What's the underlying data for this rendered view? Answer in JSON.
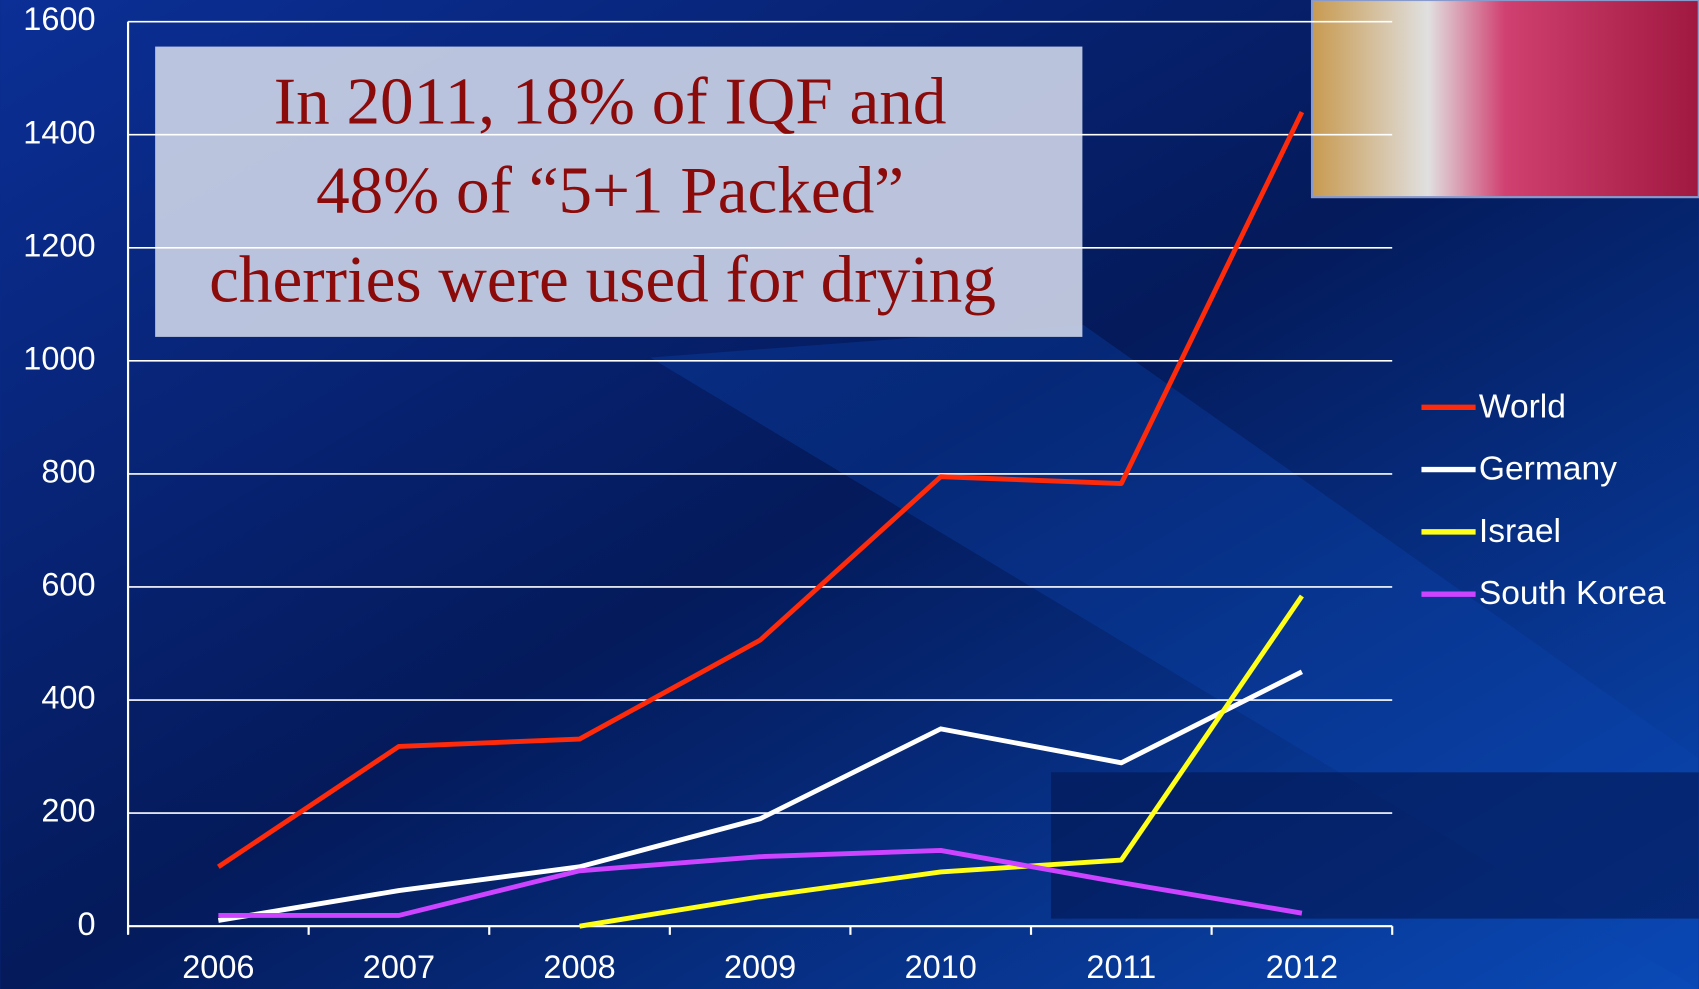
{
  "chart_data": {
    "type": "line",
    "annotation": [
      "In 2011, 18% of IQF and",
      "48% of “5+1 Packed”",
      "cherries were used for drying"
    ],
    "categories": [
      "2006",
      "2007",
      "2008",
      "2009",
      "2010",
      "2011",
      "2012"
    ],
    "series": [
      {
        "name": "World",
        "color": "#ff2a0a",
        "values": [
          105,
          318,
          331,
          506,
          795,
          783,
          1440
        ]
      },
      {
        "name": "Germany",
        "color": "#ffffff",
        "values": [
          10,
          63,
          105,
          190,
          349,
          289,
          450
        ]
      },
      {
        "name": "Israel",
        "color": "#ffff1a",
        "values": [
          null,
          null,
          0,
          52,
          96,
          117,
          584
        ]
      },
      {
        "name": "South Korea",
        "color": "#cc44ff",
        "values": [
          19,
          19,
          98,
          123,
          134,
          77,
          23
        ]
      }
    ],
    "ylim": [
      0,
      1600
    ],
    "yticks": [
      0,
      200,
      400,
      600,
      800,
      1000,
      1200,
      1400,
      1600
    ],
    "grid": true,
    "legend": "right"
  }
}
